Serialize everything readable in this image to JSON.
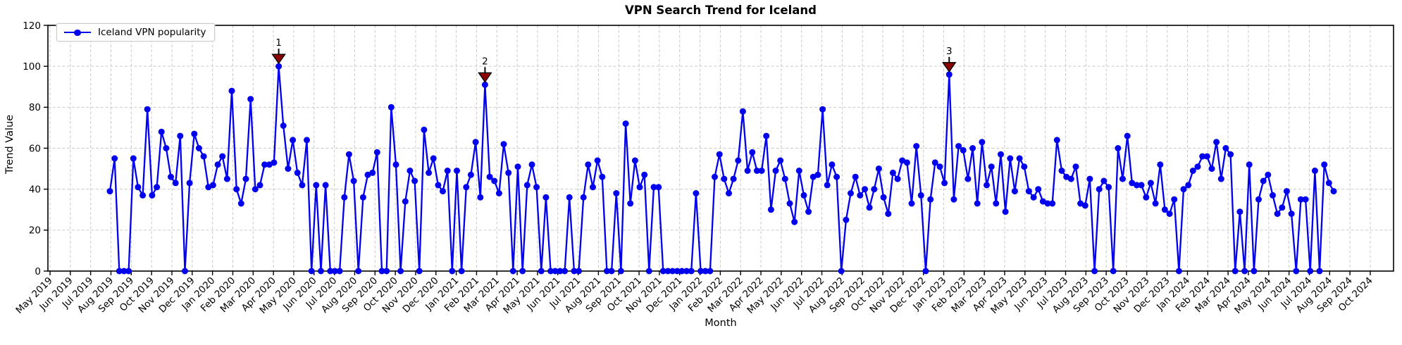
{
  "chart_data": {
    "type": "line",
    "title": "VPN Search Trend for Iceland",
    "xlabel": "Month",
    "ylabel": "Trend Value",
    "ylim": [
      0,
      120
    ],
    "yticks": [
      0,
      20,
      40,
      60,
      80,
      100,
      120
    ],
    "grid": "dashed-both-axes",
    "background": "#ffffff",
    "legend": {
      "position": "upper-left",
      "entries": [
        {
          "label": "Iceland VPN popularity",
          "color": "#0000ee",
          "marker": "circle"
        }
      ]
    },
    "x_tick_labels": [
      "May 2019",
      "Jun 2019",
      "Jul 2019",
      "Aug 2019",
      "Sep 2019",
      "Oct 2019",
      "Nov 2019",
      "Dec 2019",
      "Jan 2020",
      "Feb 2020",
      "Mar 2020",
      "Apr 2020",
      "May 2020",
      "Jun 2020",
      "Jul 2020",
      "Aug 2020",
      "Sep 2020",
      "Oct 2020",
      "Nov 2020",
      "Dec 2020",
      "Jan 2021",
      "Feb 2021",
      "Mar 2021",
      "Apr 2021",
      "May 2021",
      "Jun 2021",
      "Jul 2021",
      "Aug 2021",
      "Sep 2021",
      "Oct 2021",
      "Nov 2021",
      "Dec 2021",
      "Jan 2022",
      "Feb 2022",
      "Mar 2022",
      "Apr 2022",
      "May 2022",
      "Jun 2022",
      "Jul 2022",
      "Aug 2022",
      "Sep 2022",
      "Oct 2022",
      "Nov 2022",
      "Dec 2022",
      "Jan 2023",
      "Feb 2023",
      "Mar 2023",
      "Apr 2023",
      "May 2023",
      "Jun 2023",
      "Jul 2023",
      "Aug 2023",
      "Sep 2023",
      "Oct 2023",
      "Nov 2023",
      "Dec 2023",
      "Jan 2024",
      "Feb 2024",
      "Mar 2024",
      "Apr 2024",
      "May 2024",
      "Jun 2024",
      "Jul 2024",
      "Aug 2024",
      "Sep 2024",
      "Oct 2024"
    ],
    "series": [
      {
        "name": "Iceland VPN popularity",
        "color": "#0000ee",
        "frequency": "weekly",
        "start_date": "2019-08-04",
        "end_date": "2024-08-04",
        "values": [
          39,
          55,
          0,
          0,
          0,
          55,
          41,
          37,
          79,
          37,
          41,
          68,
          60,
          46,
          43,
          66,
          0,
          43,
          67,
          60,
          56,
          41,
          42,
          52,
          56,
          45,
          88,
          40,
          33,
          45,
          84,
          40,
          42,
          52,
          52,
          53,
          100,
          71,
          50,
          64,
          48,
          42,
          64,
          0,
          42,
          0,
          42,
          0,
          0,
          0,
          36,
          57,
          44,
          0,
          36,
          47,
          48,
          58,
          0,
          0,
          80,
          52,
          0,
          34,
          49,
          44,
          0,
          69,
          48,
          55,
          42,
          39,
          49,
          0,
          49,
          0,
          41,
          47,
          63,
          36,
          91,
          46,
          44,
          38,
          62,
          48,
          0,
          51,
          0,
          42,
          52,
          41,
          0,
          36,
          0,
          0,
          0,
          0,
          36,
          0,
          0,
          36,
          52,
          41,
          54,
          46,
          0,
          0,
          38,
          0,
          72,
          33,
          54,
          41,
          47,
          0,
          41,
          41,
          0,
          0,
          0,
          0,
          0,
          0,
          0,
          38,
          0,
          0,
          0,
          46,
          57,
          45,
          38,
          45,
          54,
          78,
          49,
          58,
          49,
          49,
          66,
          30,
          49,
          54,
          45,
          33,
          24,
          49,
          37,
          29,
          46,
          47,
          79,
          42,
          52,
          46,
          0,
          25,
          38,
          46,
          37,
          40,
          31,
          40,
          50,
          36,
          28,
          48,
          45,
          54,
          53,
          33,
          61,
          37,
          0,
          35,
          53,
          51,
          43,
          96,
          35,
          61,
          59,
          45,
          60,
          33,
          63,
          42,
          51,
          33,
          57,
          29,
          55,
          39,
          55,
          51,
          39,
          36,
          40,
          34,
          33,
          33,
          64,
          49,
          46,
          45,
          51,
          33,
          32,
          45,
          0,
          40,
          44,
          41,
          0,
          60,
          45,
          66,
          43,
          42,
          42,
          36,
          43,
          33,
          52,
          30,
          28,
          35,
          0,
          40,
          42,
          49,
          51,
          56,
          56,
          50,
          63,
          45,
          60,
          57,
          0,
          29,
          0,
          52,
          0,
          35,
          44,
          47,
          37,
          28,
          31,
          39,
          28,
          0,
          35,
          35,
          0,
          49,
          0,
          52,
          43,
          39
        ]
      }
    ],
    "annotations": [
      {
        "label": "1",
        "week_index": 36,
        "date": "2020-04-12",
        "value": 100,
        "color": "#8b0000"
      },
      {
        "label": "2",
        "week_index": 80,
        "date": "2021-02-14",
        "value": 91,
        "color": "#8b0000"
      },
      {
        "label": "3",
        "week_index": 179,
        "date": "2023-01-08",
        "value": 96,
        "color": "#8b0000"
      }
    ]
  }
}
